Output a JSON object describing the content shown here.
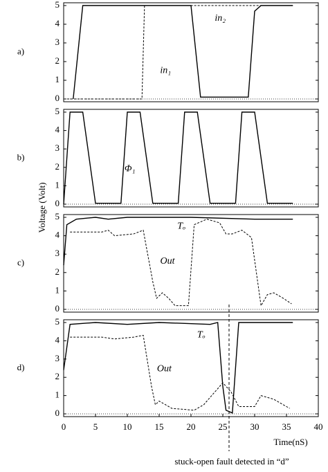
{
  "ylabel": "Voltage (Volt)",
  "xlabel": "Time(nS)",
  "annotation": "stuck-open fault detected in “d”",
  "chart_data": [
    {
      "type": "line",
      "panel_label": "a)",
      "xlim": [
        0,
        40
      ],
      "ylim": [
        0,
        5
      ],
      "yticks": [
        0,
        1,
        2,
        3,
        4,
        5
      ],
      "series": [
        {
          "name": "in₂",
          "color": "#000",
          "dash": false,
          "x": [
            1.5,
            3,
            20,
            21.5,
            29,
            30,
            31,
            36
          ],
          "values": [
            0,
            5,
            5,
            0.1,
            0.1,
            4.7,
            5,
            5
          ]
        },
        {
          "name": "in₁",
          "color": "#000",
          "dash": true,
          "x": [
            0,
            12.3,
            12.7,
            36
          ],
          "values": [
            0,
            0,
            5,
            5
          ]
        }
      ]
    },
    {
      "type": "line",
      "panel_label": "b)",
      "xlim": [
        0,
        40
      ],
      "ylim": [
        0,
        5
      ],
      "yticks": [
        0,
        1,
        2,
        3,
        4,
        5
      ],
      "series": [
        {
          "name": "Φ₁",
          "color": "#000",
          "dash": false,
          "x": [
            0,
            1,
            3,
            5,
            9,
            10,
            12,
            14,
            18,
            19,
            21,
            23,
            27,
            28,
            30,
            32,
            36
          ],
          "values": [
            0,
            5,
            5,
            0.05,
            0.05,
            5,
            5,
            0.05,
            0.05,
            5,
            5,
            0.05,
            0.05,
            5,
            5,
            0.05,
            0.05
          ]
        }
      ]
    },
    {
      "type": "line",
      "panel_label": "c)",
      "xlim": [
        0,
        40
      ],
      "ylim": [
        0,
        5
      ],
      "yticks": [
        0,
        1,
        2,
        3,
        4,
        5
      ],
      "series": [
        {
          "name": "Tₒ",
          "color": "#000",
          "dash": false,
          "x": [
            0,
            0.5,
            2,
            5,
            7,
            10,
            20,
            30,
            36
          ],
          "values": [
            2.4,
            4.6,
            4.9,
            5,
            4.9,
            5,
            5,
            4.9,
            4.9
          ]
        },
        {
          "name": "Out",
          "color": "#000",
          "dash": true,
          "x": [
            1,
            6,
            7,
            8,
            11,
            12.5,
            14,
            14.6,
            15.5,
            16.5,
            17.5,
            19.6,
            20.5,
            22.5,
            24.5,
            25.5,
            26.5,
            28,
            29.5,
            31,
            32,
            33,
            34.5,
            35.8
          ],
          "values": [
            4.2,
            4.2,
            4.3,
            4.0,
            4.1,
            4.3,
            1.5,
            0.6,
            0.9,
            0.6,
            0.2,
            0.2,
            4.6,
            4.9,
            4.7,
            4.1,
            4.1,
            4.3,
            3.9,
            0.2,
            0.8,
            0.9,
            0.6,
            0.3
          ]
        }
      ]
    },
    {
      "type": "line",
      "panel_label": "d)",
      "xlim": [
        0,
        40
      ],
      "ylim": [
        0,
        5
      ],
      "yticks": [
        0,
        1,
        2,
        3,
        4,
        5
      ],
      "xticks": [
        0,
        5,
        10,
        15,
        20,
        25,
        30,
        35,
        40
      ],
      "series": [
        {
          "name": "Tₒ",
          "color": "#000",
          "dash": false,
          "x": [
            0,
            1,
            5,
            10,
            15,
            23,
            24.2,
            25,
            25.5,
            26.5,
            27.5,
            36
          ],
          "values": [
            2.4,
            4.9,
            5,
            4.9,
            5,
            4.9,
            5,
            1.5,
            0.2,
            0.05,
            5,
            5
          ]
        },
        {
          "name": "Out",
          "color": "#000",
          "dash": true,
          "x": [
            1,
            6,
            8,
            11,
            12.5,
            13.8,
            14.4,
            15,
            17,
            20.5,
            22,
            24,
            25,
            26.3,
            27.5,
            30,
            31,
            33,
            35.5
          ],
          "values": [
            4.2,
            4.2,
            4.1,
            4.2,
            4.3,
            1.5,
            0.5,
            0.7,
            0.3,
            0.2,
            0.5,
            1.3,
            1.7,
            1.2,
            0.4,
            0.4,
            1.0,
            0.8,
            0.3
          ]
        }
      ]
    }
  ]
}
